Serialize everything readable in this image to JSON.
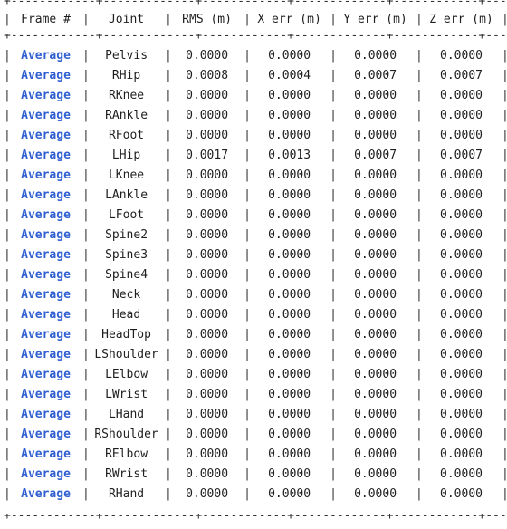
{
  "separator": "+------------+-------------+------------+-------------+------------+-------------+",
  "headers": {
    "frame": "Frame #",
    "joint": "Joint",
    "rms": "RMS (m)",
    "x": "X err (m)",
    "y": "Y err (m)",
    "z": "Z err (m)"
  },
  "rows": [
    {
      "frame": "Average",
      "joint": "Pelvis",
      "rms": "0.0000",
      "x": "0.0000",
      "y": "0.0000",
      "z": "0.0000"
    },
    {
      "frame": "Average",
      "joint": "RHip",
      "rms": "0.0008",
      "x": "0.0004",
      "y": "0.0007",
      "z": "0.0007"
    },
    {
      "frame": "Average",
      "joint": "RKnee",
      "rms": "0.0000",
      "x": "0.0000",
      "y": "0.0000",
      "z": "0.0000"
    },
    {
      "frame": "Average",
      "joint": "RAnkle",
      "rms": "0.0000",
      "x": "0.0000",
      "y": "0.0000",
      "z": "0.0000"
    },
    {
      "frame": "Average",
      "joint": "RFoot",
      "rms": "0.0000",
      "x": "0.0000",
      "y": "0.0000",
      "z": "0.0000"
    },
    {
      "frame": "Average",
      "joint": "LHip",
      "rms": "0.0017",
      "x": "0.0013",
      "y": "0.0007",
      "z": "0.0007"
    },
    {
      "frame": "Average",
      "joint": "LKnee",
      "rms": "0.0000",
      "x": "0.0000",
      "y": "0.0000",
      "z": "0.0000"
    },
    {
      "frame": "Average",
      "joint": "LAnkle",
      "rms": "0.0000",
      "x": "0.0000",
      "y": "0.0000",
      "z": "0.0000"
    },
    {
      "frame": "Average",
      "joint": "LFoot",
      "rms": "0.0000",
      "x": "0.0000",
      "y": "0.0000",
      "z": "0.0000"
    },
    {
      "frame": "Average",
      "joint": "Spine2",
      "rms": "0.0000",
      "x": "0.0000",
      "y": "0.0000",
      "z": "0.0000"
    },
    {
      "frame": "Average",
      "joint": "Spine3",
      "rms": "0.0000",
      "x": "0.0000",
      "y": "0.0000",
      "z": "0.0000"
    },
    {
      "frame": "Average",
      "joint": "Spine4",
      "rms": "0.0000",
      "x": "0.0000",
      "y": "0.0000",
      "z": "0.0000"
    },
    {
      "frame": "Average",
      "joint": "Neck",
      "rms": "0.0000",
      "x": "0.0000",
      "y": "0.0000",
      "z": "0.0000"
    },
    {
      "frame": "Average",
      "joint": "Head",
      "rms": "0.0000",
      "x": "0.0000",
      "y": "0.0000",
      "z": "0.0000"
    },
    {
      "frame": "Average",
      "joint": "HeadTop",
      "rms": "0.0000",
      "x": "0.0000",
      "y": "0.0000",
      "z": "0.0000"
    },
    {
      "frame": "Average",
      "joint": "LShoulder",
      "rms": "0.0000",
      "x": "0.0000",
      "y": "0.0000",
      "z": "0.0000"
    },
    {
      "frame": "Average",
      "joint": "LElbow",
      "rms": "0.0000",
      "x": "0.0000",
      "y": "0.0000",
      "z": "0.0000"
    },
    {
      "frame": "Average",
      "joint": "LWrist",
      "rms": "0.0000",
      "x": "0.0000",
      "y": "0.0000",
      "z": "0.0000"
    },
    {
      "frame": "Average",
      "joint": "LHand",
      "rms": "0.0000",
      "x": "0.0000",
      "y": "0.0000",
      "z": "0.0000"
    },
    {
      "frame": "Average",
      "joint": "RShoulder",
      "rms": "0.0000",
      "x": "0.0000",
      "y": "0.0000",
      "z": "0.0000"
    },
    {
      "frame": "Average",
      "joint": "RElbow",
      "rms": "0.0000",
      "x": "0.0000",
      "y": "0.0000",
      "z": "0.0000"
    },
    {
      "frame": "Average",
      "joint": "RWrist",
      "rms": "0.0000",
      "x": "0.0000",
      "y": "0.0000",
      "z": "0.0000"
    },
    {
      "frame": "Average",
      "joint": "RHand",
      "rms": "0.0000",
      "x": "0.0000",
      "y": "0.0000",
      "z": "0.0000"
    }
  ]
}
